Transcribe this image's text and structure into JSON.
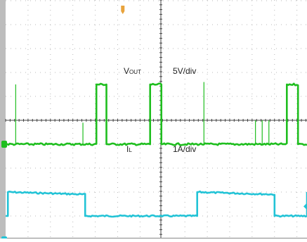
{
  "chart_data": {
    "type": "line",
    "title": "",
    "grid": true,
    "x_divisions": 10,
    "y_divisions": 8,
    "colors": {
      "vout": "#22c3d6",
      "il": "#1fbe1f",
      "grid": "#b8b8b8",
      "axis": "#444444",
      "trigger": "#e8a33c"
    },
    "series": [
      {
        "key": "vout",
        "label_main": "V",
        "label_sub": "OUT",
        "scale": "5V/div",
        "ground_div": 5.0,
        "points": [
          [
            0.0,
            1.0
          ],
          [
            0.1,
            1.0
          ],
          [
            0.1,
            2.0
          ],
          [
            3.55,
            1.9
          ],
          [
            3.55,
            1.0
          ],
          [
            8.55,
            1.0
          ],
          [
            8.55,
            2.0
          ],
          [
            12.0,
            1.9
          ],
          [
            12.0,
            1.0
          ],
          [
            13.45,
            1.0
          ],
          [
            13.45,
            2.0
          ]
        ],
        "noise_div": 0.06
      },
      {
        "key": "il",
        "label_main": "I",
        "label_sub": "L",
        "scale": "1A/div",
        "ground_div": 1.0,
        "points": [
          [
            0.0,
            0.0
          ],
          [
            4.05,
            0.0
          ],
          [
            4.05,
            2.5
          ],
          [
            4.5,
            2.5
          ],
          [
            4.5,
            0.0
          ],
          [
            6.45,
            0.0
          ],
          [
            6.45,
            2.5
          ],
          [
            6.95,
            2.5
          ],
          [
            6.95,
            0.0
          ],
          [
            12.55,
            0.0
          ],
          [
            12.55,
            2.5
          ],
          [
            13.05,
            2.5
          ],
          [
            13.05,
            0.0
          ],
          [
            13.45,
            0.0
          ]
        ],
        "noise_div": 0.08,
        "spikes": [
          [
            0.45,
            2.5
          ],
          [
            3.45,
            0.9
          ],
          [
            8.85,
            2.6
          ],
          [
            11.15,
            1.0
          ],
          [
            11.45,
            1.0
          ],
          [
            11.75,
            1.0
          ]
        ]
      }
    ]
  }
}
